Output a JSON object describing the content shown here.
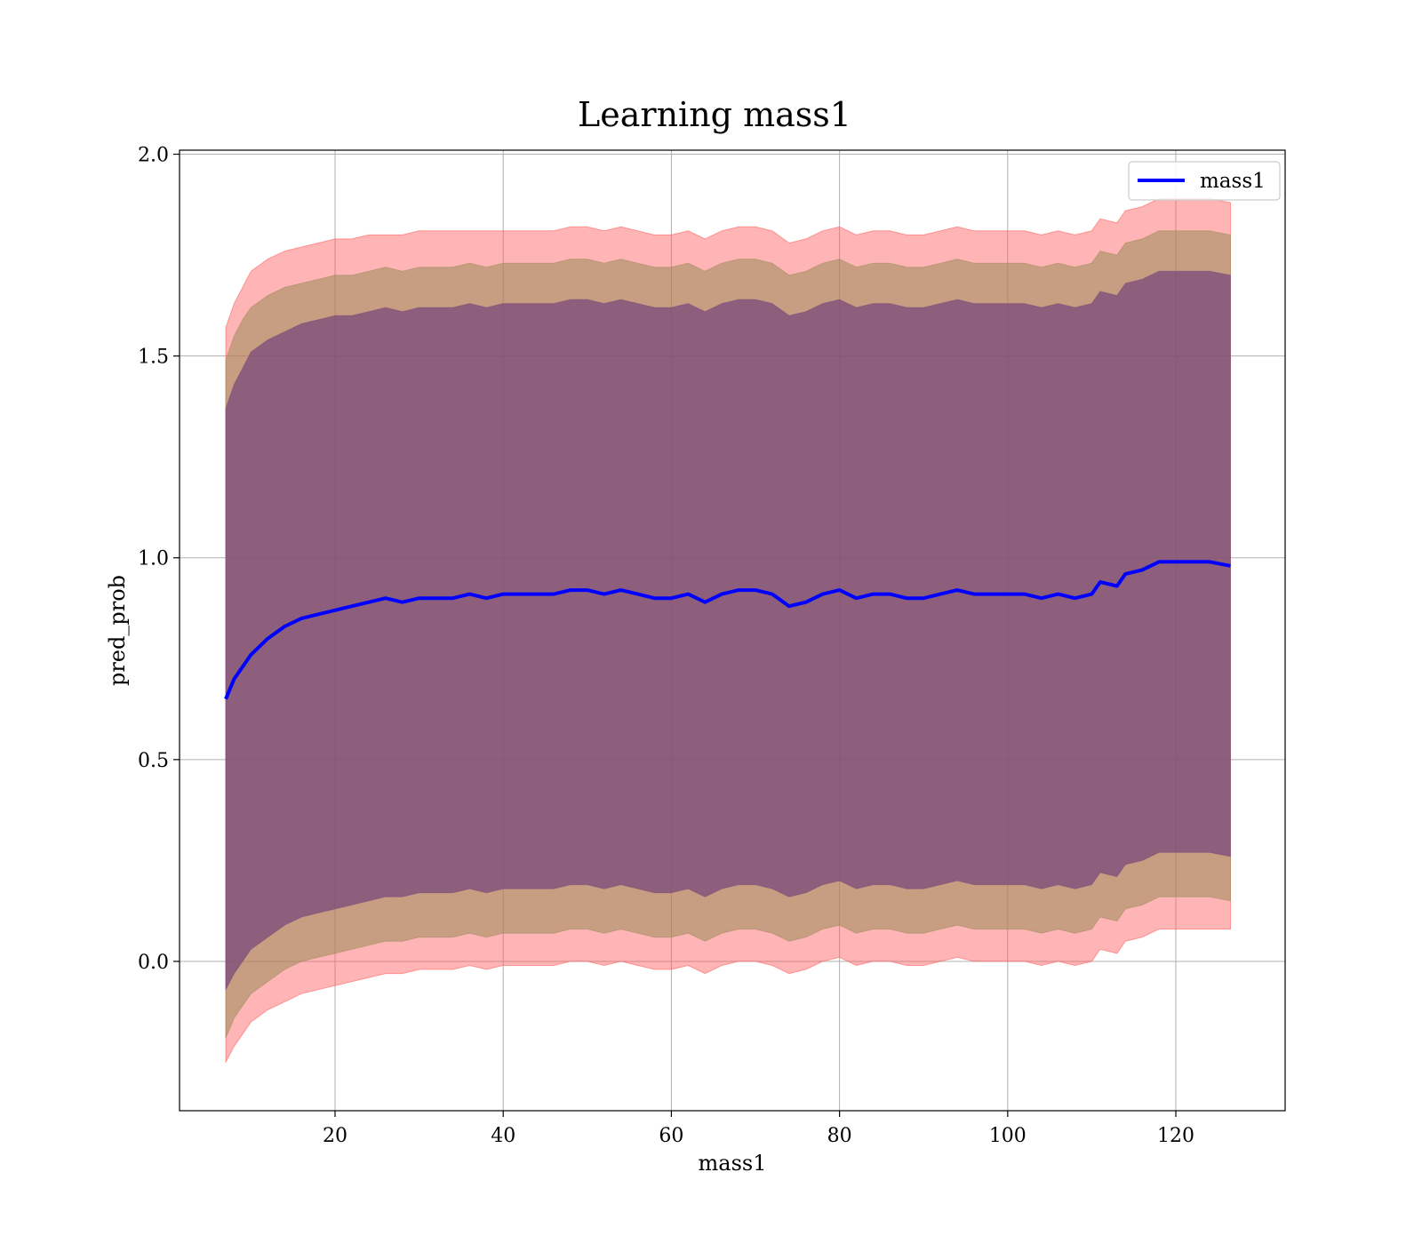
{
  "chart_data": {
    "type": "area",
    "title": "Learning mass1",
    "xlabel": "mass1",
    "ylabel": "pred_prob",
    "xlim": [
      1.5,
      133
    ],
    "ylim": [
      -0.37,
      2.01
    ],
    "xticks": [
      20,
      40,
      60,
      80,
      100,
      120
    ],
    "yticks": [
      0.0,
      0.5,
      1.0,
      1.5,
      2.0
    ],
    "ytick_labels": [
      "0.0",
      "0.5",
      "1.0",
      "1.5",
      "2.0"
    ],
    "grid": true,
    "legend": {
      "position": "top-right",
      "entries": [
        "mass1"
      ]
    },
    "colors": {
      "mean_line": "#0000ff",
      "band_outer": "#ff5a5a",
      "band_middle": "#9a8a5a",
      "band_inner": "#7a4a7a"
    },
    "series": [
      {
        "name": "mass1",
        "x": [
          7,
          8,
          9,
          10,
          12,
          14,
          16,
          18,
          20,
          22,
          24,
          26,
          28,
          30,
          32,
          34,
          36,
          38,
          40,
          42,
          44,
          46,
          48,
          50,
          52,
          54,
          56,
          58,
          60,
          62,
          64,
          66,
          68,
          70,
          72,
          74,
          76,
          78,
          80,
          82,
          84,
          86,
          88,
          90,
          92,
          94,
          96,
          98,
          100,
          102,
          104,
          106,
          108,
          110,
          111,
          113,
          114,
          116,
          118,
          120,
          122,
          124,
          126.5
        ],
        "y": [
          0.65,
          0.7,
          0.73,
          0.76,
          0.8,
          0.83,
          0.85,
          0.86,
          0.87,
          0.88,
          0.89,
          0.9,
          0.89,
          0.9,
          0.9,
          0.9,
          0.91,
          0.9,
          0.91,
          0.91,
          0.91,
          0.91,
          0.92,
          0.92,
          0.91,
          0.92,
          0.91,
          0.9,
          0.9,
          0.91,
          0.89,
          0.91,
          0.92,
          0.92,
          0.91,
          0.88,
          0.89,
          0.91,
          0.92,
          0.9,
          0.91,
          0.91,
          0.9,
          0.9,
          0.91,
          0.92,
          0.91,
          0.91,
          0.91,
          0.91,
          0.9,
          0.91,
          0.9,
          0.91,
          0.94,
          0.93,
          0.96,
          0.97,
          0.99,
          0.99,
          0.99,
          0.99,
          0.98
        ],
        "band_outer_upper": [
          1.57,
          1.63,
          1.67,
          1.71,
          1.74,
          1.76,
          1.77,
          1.78,
          1.79,
          1.79,
          1.8,
          1.8,
          1.8,
          1.81,
          1.81,
          1.81,
          1.81,
          1.81,
          1.81,
          1.81,
          1.81,
          1.81,
          1.82,
          1.82,
          1.81,
          1.82,
          1.81,
          1.8,
          1.8,
          1.81,
          1.79,
          1.81,
          1.82,
          1.82,
          1.81,
          1.78,
          1.79,
          1.81,
          1.82,
          1.8,
          1.81,
          1.81,
          1.8,
          1.8,
          1.81,
          1.82,
          1.81,
          1.81,
          1.81,
          1.81,
          1.8,
          1.81,
          1.8,
          1.81,
          1.84,
          1.83,
          1.86,
          1.87,
          1.89,
          1.89,
          1.89,
          1.89,
          1.88
        ],
        "band_outer_lower": [
          -0.25,
          -0.21,
          -0.18,
          -0.15,
          -0.12,
          -0.1,
          -0.08,
          -0.07,
          -0.06,
          -0.05,
          -0.04,
          -0.03,
          -0.03,
          -0.02,
          -0.02,
          -0.02,
          -0.01,
          -0.02,
          -0.01,
          -0.01,
          -0.01,
          -0.01,
          0.0,
          0.0,
          -0.01,
          0.0,
          -0.01,
          -0.02,
          -0.02,
          -0.01,
          -0.03,
          -0.01,
          0.0,
          0.0,
          -0.01,
          -0.03,
          -0.02,
          0.0,
          0.01,
          -0.01,
          0.0,
          0.0,
          -0.01,
          -0.01,
          0.0,
          0.01,
          0.0,
          0.0,
          0.0,
          0.0,
          -0.01,
          0.0,
          -0.01,
          0.0,
          0.03,
          0.02,
          0.05,
          0.06,
          0.08,
          0.08,
          0.08,
          0.08,
          0.08
        ],
        "band_middle_upper": [
          1.49,
          1.55,
          1.59,
          1.62,
          1.65,
          1.67,
          1.68,
          1.69,
          1.7,
          1.7,
          1.71,
          1.72,
          1.71,
          1.72,
          1.72,
          1.72,
          1.73,
          1.72,
          1.73,
          1.73,
          1.73,
          1.73,
          1.74,
          1.74,
          1.73,
          1.74,
          1.73,
          1.72,
          1.72,
          1.73,
          1.71,
          1.73,
          1.74,
          1.74,
          1.73,
          1.7,
          1.71,
          1.73,
          1.74,
          1.72,
          1.73,
          1.73,
          1.72,
          1.72,
          1.73,
          1.74,
          1.73,
          1.73,
          1.73,
          1.73,
          1.72,
          1.73,
          1.72,
          1.73,
          1.76,
          1.75,
          1.78,
          1.79,
          1.81,
          1.81,
          1.81,
          1.81,
          1.8
        ],
        "band_middle_lower": [
          -0.19,
          -0.14,
          -0.11,
          -0.08,
          -0.05,
          -0.02,
          0.0,
          0.01,
          0.02,
          0.03,
          0.04,
          0.05,
          0.05,
          0.06,
          0.06,
          0.06,
          0.07,
          0.06,
          0.07,
          0.07,
          0.07,
          0.07,
          0.08,
          0.08,
          0.07,
          0.08,
          0.07,
          0.06,
          0.06,
          0.07,
          0.05,
          0.07,
          0.08,
          0.08,
          0.07,
          0.05,
          0.06,
          0.08,
          0.09,
          0.07,
          0.08,
          0.08,
          0.07,
          0.07,
          0.08,
          0.09,
          0.08,
          0.08,
          0.08,
          0.08,
          0.07,
          0.08,
          0.07,
          0.08,
          0.11,
          0.1,
          0.13,
          0.14,
          0.16,
          0.16,
          0.16,
          0.16,
          0.15
        ],
        "band_inner_upper": [
          1.37,
          1.43,
          1.47,
          1.51,
          1.54,
          1.56,
          1.58,
          1.59,
          1.6,
          1.6,
          1.61,
          1.62,
          1.61,
          1.62,
          1.62,
          1.62,
          1.63,
          1.62,
          1.63,
          1.63,
          1.63,
          1.63,
          1.64,
          1.64,
          1.63,
          1.64,
          1.63,
          1.62,
          1.62,
          1.63,
          1.61,
          1.63,
          1.64,
          1.64,
          1.63,
          1.6,
          1.61,
          1.63,
          1.64,
          1.62,
          1.63,
          1.63,
          1.62,
          1.62,
          1.63,
          1.64,
          1.63,
          1.63,
          1.63,
          1.63,
          1.62,
          1.63,
          1.62,
          1.63,
          1.66,
          1.65,
          1.68,
          1.69,
          1.71,
          1.71,
          1.71,
          1.71,
          1.7
        ],
        "band_inner_lower": [
          -0.07,
          -0.03,
          0.0,
          0.03,
          0.06,
          0.09,
          0.11,
          0.12,
          0.13,
          0.14,
          0.15,
          0.16,
          0.16,
          0.17,
          0.17,
          0.17,
          0.18,
          0.17,
          0.18,
          0.18,
          0.18,
          0.18,
          0.19,
          0.19,
          0.18,
          0.19,
          0.18,
          0.17,
          0.17,
          0.18,
          0.16,
          0.18,
          0.19,
          0.19,
          0.18,
          0.16,
          0.17,
          0.19,
          0.2,
          0.18,
          0.19,
          0.19,
          0.18,
          0.18,
          0.19,
          0.2,
          0.19,
          0.19,
          0.19,
          0.19,
          0.18,
          0.19,
          0.18,
          0.19,
          0.22,
          0.21,
          0.24,
          0.25,
          0.27,
          0.27,
          0.27,
          0.27,
          0.26
        ]
      }
    ]
  }
}
